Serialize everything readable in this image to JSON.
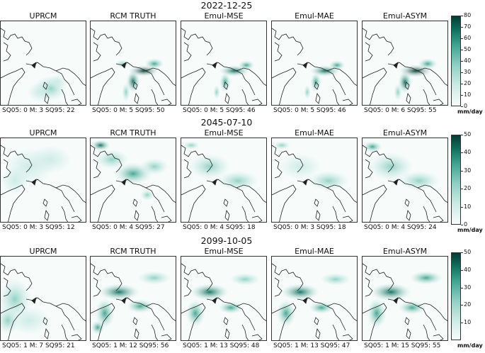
{
  "panel_titles": [
    "UPRCM",
    "RCM TRUTH",
    "Emul-MSE",
    "Emul-MAE",
    "Emul-ASYM"
  ],
  "colorbar_unit": "mm/day",
  "colormap": [
    "#f7fcfa",
    "#cdebe5",
    "#8fd0c4",
    "#3ea391",
    "#0f6f5f",
    "#063b32"
  ],
  "chart_data": [
    {
      "type": "heatmap",
      "title": "2022-12-25",
      "panels": [
        "UPRCM",
        "RCM TRUTH",
        "Emul-MSE",
        "Emul-MAE",
        "Emul-ASYM"
      ],
      "stats": [
        "SQ05: 0  M: 3  SQ95: 22",
        "SQ05: 0  M: 5  SQ95: 50",
        "SQ05: 0  M: 5  SQ95: 46",
        "SQ05: 0  M: 5  SQ95: 46",
        "SQ05: 0  M: 6  SQ95: 55"
      ],
      "colorbar_range": [
        0,
        80
      ],
      "colorbar_ticks": [
        "80",
        "70",
        "60",
        "50",
        "40",
        "30",
        "20",
        "10",
        "0"
      ]
    },
    {
      "type": "heatmap",
      "title": "2045-07-10",
      "panels": [
        "UPRCM",
        "RCM TRUTH",
        "Emul-MSE",
        "Emul-MAE",
        "Emul-ASYM"
      ],
      "stats": [
        "SQ05: 0  M: 3  SQ95: 12",
        "SQ05: 0  M: 4  SQ95: 27",
        "SQ05: 0  M: 4  SQ95: 18",
        "SQ05: 0  M: 3  SQ95: 18",
        "SQ05: 0  M: 4  SQ95: 24"
      ],
      "colorbar_range": [
        0,
        50
      ],
      "colorbar_ticks": [
        "50",
        "40",
        "30",
        "20",
        "10",
        "0"
      ]
    },
    {
      "type": "heatmap",
      "title": "2099-10-05",
      "panels": [
        "UPRCM",
        "RCM TRUTH",
        "Emul-MSE",
        "Emul-MAE",
        "Emul-ASYM"
      ],
      "stats": [
        "SQ05: 1  M: 7  SQ95: 21",
        "SQ05: 1  M: 12  SQ95: 56",
        "SQ05: 1  M: 13  SQ95: 48",
        "SQ05: 1  M: 13  SQ95: 47",
        "SQ05: 1  M: 15  SQ95: 55"
      ],
      "colorbar_range": [
        0,
        50
      ],
      "colorbar_ticks": [
        "50",
        "40",
        "30",
        "20",
        "10"
      ]
    }
  ]
}
